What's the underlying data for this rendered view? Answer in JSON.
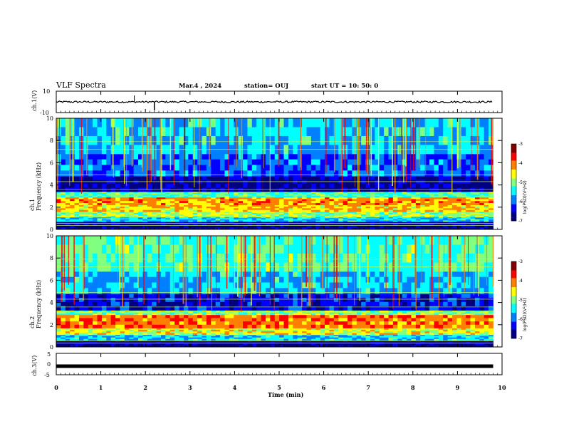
{
  "header": {
    "title": "VLF Spectra",
    "date": "Mar.4 , 2024",
    "station": "station= OUJ",
    "start": "start  UT  =   10: 50: 0"
  },
  "chart_data": [
    {
      "type": "line",
      "panel": "ch1-waveform",
      "ylabel": "ch.1(V)",
      "ylim": [
        -10,
        10
      ],
      "yticks": [
        "10",
        "-10"
      ],
      "baseline": 0,
      "xlim": [
        0,
        9.8
      ]
    },
    {
      "type": "heatmap",
      "panel": "ch1-spectrogram",
      "ylabel": "ch.1\nFrequency (kHz)",
      "ylim": [
        0,
        10
      ],
      "yticks": [
        "0",
        "2",
        "4",
        "6",
        "8",
        "10"
      ],
      "xlim": [
        0,
        9.8
      ],
      "colorbar": {
        "label": "log(PSD)(V²/Hz)",
        "range": [
          -7,
          -3
        ],
        "ticks": [
          "-3",
          "-4",
          "-5",
          "-6",
          "-7"
        ]
      },
      "bands": [
        {
          "from": 0,
          "to": 0.7,
          "level": -6.8
        },
        {
          "from": 0.7,
          "to": 1.1,
          "level": -5.6
        },
        {
          "from": 1.1,
          "to": 1.6,
          "level": -4.9
        },
        {
          "from": 1.6,
          "to": 2.2,
          "level": -4.4
        },
        {
          "from": 2.2,
          "to": 2.9,
          "level": -4.2
        },
        {
          "from": 2.9,
          "to": 3.4,
          "level": -5.2
        },
        {
          "from": 3.4,
          "to": 4.8,
          "level": -6.7
        },
        {
          "from": 4.8,
          "to": 6.8,
          "level": -6.0
        },
        {
          "from": 6.8,
          "to": 10,
          "level": -5.6
        }
      ]
    },
    {
      "type": "heatmap",
      "panel": "ch2-spectrogram",
      "ylabel": "ch.2\nFrequency (kHz)",
      "ylim": [
        0,
        10
      ],
      "yticks": [
        "0",
        "2",
        "4",
        "6",
        "8",
        "10"
      ],
      "xlim": [
        0,
        9.8
      ],
      "colorbar": {
        "label": "log(PSD)(V²/Hz)",
        "range": [
          -7,
          -3
        ],
        "ticks": [
          "-3",
          "-4",
          "-5",
          "-6",
          "-7"
        ]
      },
      "bands": [
        {
          "from": 0,
          "to": 0.6,
          "level": -6.8
        },
        {
          "from": 0.6,
          "to": 1.1,
          "level": -5.6
        },
        {
          "from": 1.1,
          "to": 1.7,
          "level": -4.6
        },
        {
          "from": 1.7,
          "to": 2.9,
          "level": -4.0
        },
        {
          "from": 2.9,
          "to": 3.3,
          "level": -5.0
        },
        {
          "from": 3.3,
          "to": 4.8,
          "level": -6.4
        },
        {
          "from": 4.8,
          "to": 6.8,
          "level": -5.6
        },
        {
          "from": 6.8,
          "to": 10,
          "level": -5.2
        }
      ]
    },
    {
      "type": "line",
      "panel": "ch3-waveform",
      "ylabel": "ch.3(V)",
      "ylim": [
        -5,
        5
      ],
      "yticks": [
        "5",
        "0",
        "-5"
      ],
      "baseline": -1,
      "xlim": [
        0,
        9.8
      ]
    }
  ],
  "xaxis": {
    "label": "Time  (min)",
    "ticks": [
      "0",
      "1",
      "2",
      "3",
      "4",
      "5",
      "6",
      "7",
      "8",
      "9",
      "10"
    ],
    "range": [
      0,
      10
    ]
  },
  "colors": {
    "scale": [
      "#000080",
      "#0000ff",
      "#0080ff",
      "#00ffff",
      "#80ff80",
      "#ffff00",
      "#ff8000",
      "#ff0000",
      "#800000"
    ]
  }
}
